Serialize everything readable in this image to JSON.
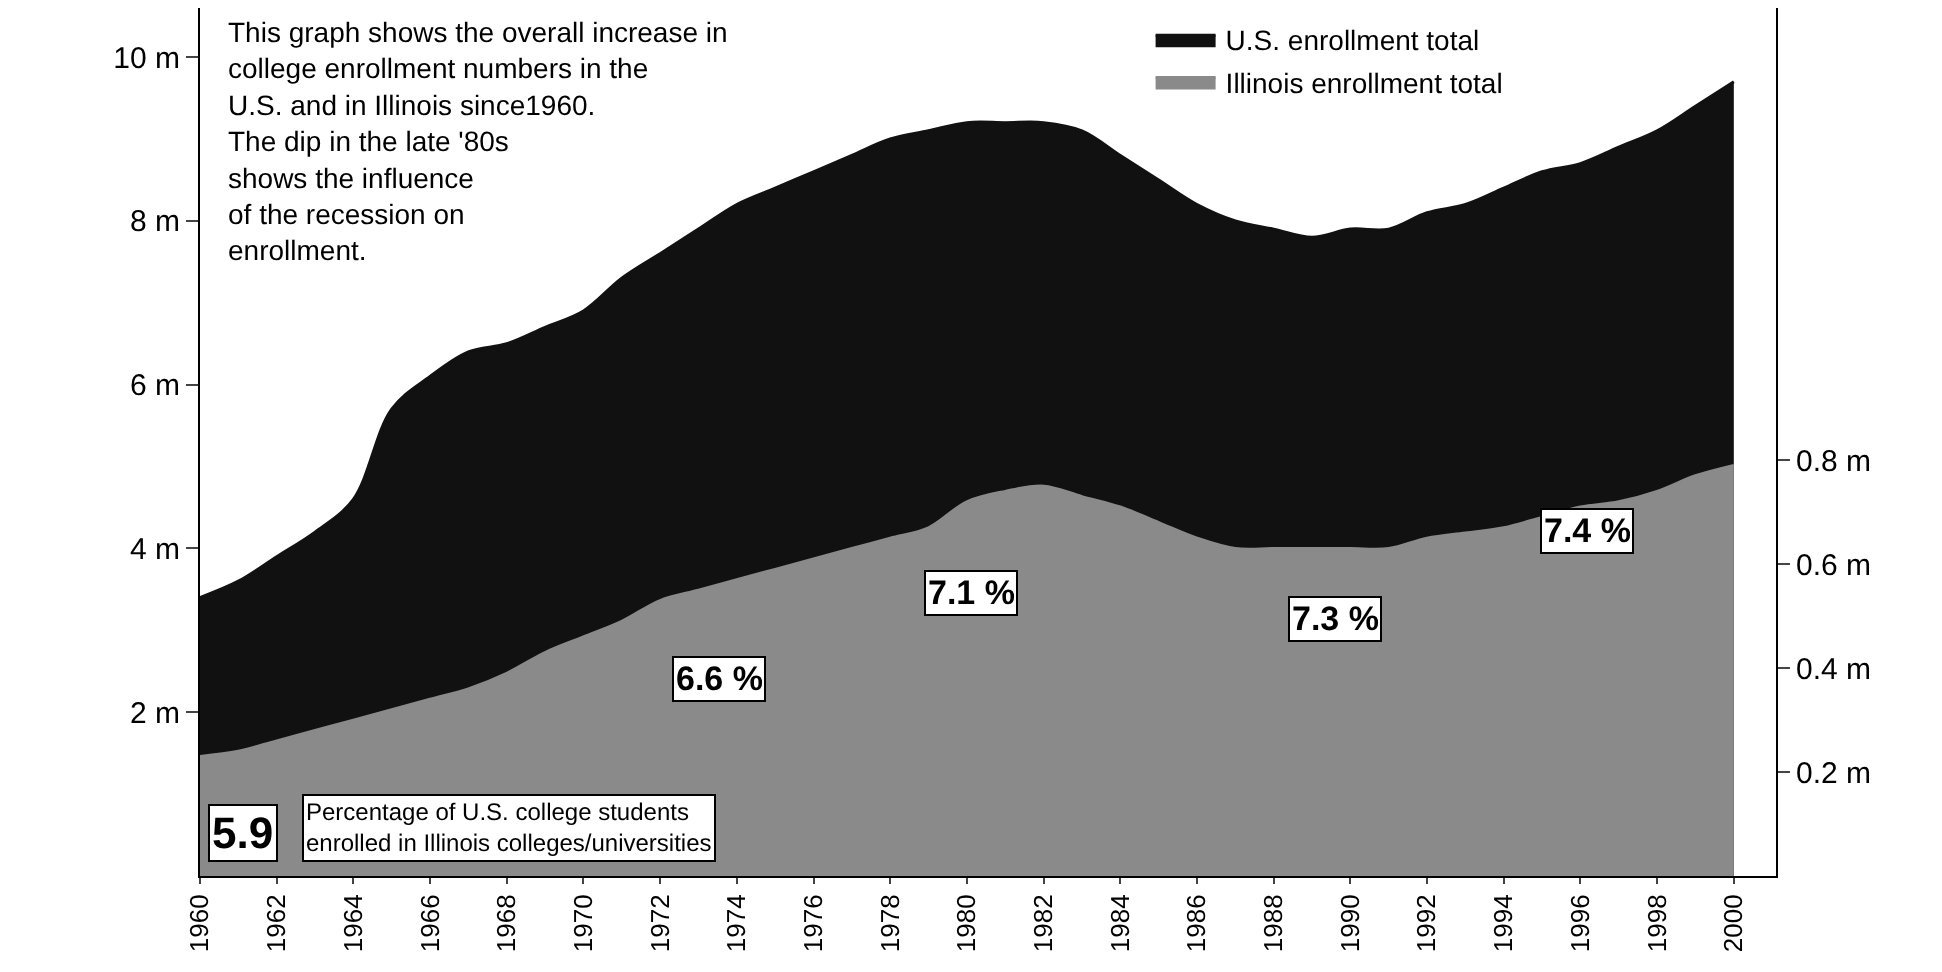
{
  "chart_data": {
    "type": "area",
    "x": [
      1960,
      1961,
      1962,
      1963,
      1964,
      1965,
      1966,
      1967,
      1968,
      1969,
      1970,
      1971,
      1972,
      1973,
      1974,
      1975,
      1976,
      1977,
      1978,
      1979,
      1980,
      1981,
      1982,
      1983,
      1984,
      1985,
      1986,
      1987,
      1988,
      1989,
      1990,
      1991,
      1992,
      1993,
      1994,
      1995,
      1996,
      1997,
      1998,
      1999,
      2000
    ],
    "series": [
      {
        "name": "U.S. enrollment total",
        "color": "#111111",
        "values": [
          3.4,
          3.6,
          3.9,
          4.2,
          4.6,
          5.7,
          6.1,
          6.4,
          6.5,
          6.7,
          6.9,
          7.3,
          7.6,
          7.9,
          8.2,
          8.4,
          8.6,
          8.8,
          9.0,
          9.1,
          9.2,
          9.2,
          9.2,
          9.1,
          8.8,
          8.5,
          8.2,
          8.0,
          7.9,
          7.8,
          7.9,
          7.9,
          8.1,
          8.2,
          8.4,
          8.6,
          8.7,
          8.9,
          9.1,
          9.4,
          9.7
        ]
      },
      {
        "name": "Illinois enrollment total",
        "color": "#8a8a8a",
        "axis": "y2",
        "values": [
          0.23,
          0.24,
          0.26,
          0.28,
          0.3,
          0.32,
          0.34,
          0.36,
          0.39,
          0.43,
          0.46,
          0.49,
          0.53,
          0.55,
          0.57,
          0.59,
          0.61,
          0.63,
          0.65,
          0.67,
          0.72,
          0.74,
          0.75,
          0.73,
          0.71,
          0.68,
          0.65,
          0.63,
          0.63,
          0.63,
          0.63,
          0.63,
          0.65,
          0.66,
          0.67,
          0.69,
          0.71,
          0.72,
          0.74,
          0.77,
          0.79
        ]
      }
    ],
    "xlim": [
      1960,
      2001.1
    ],
    "xticks": [
      1960,
      1962,
      1964,
      1966,
      1968,
      1970,
      1972,
      1974,
      1976,
      1978,
      1980,
      1982,
      1984,
      1986,
      1988,
      1990,
      1992,
      1994,
      1996,
      1998,
      2000
    ],
    "ylim": [
      0,
      10.6
    ],
    "yticks": [
      {
        "value": 2,
        "label": "2 m"
      },
      {
        "value": 4,
        "label": "4 m"
      },
      {
        "value": 6,
        "label": "6 m"
      },
      {
        "value": 8,
        "label": "8 m"
      },
      {
        "value": 10,
        "label": "10 m"
      }
    ],
    "y2lim": [
      0,
      1.67
    ],
    "y2ticks": [
      {
        "value": 0.2,
        "label": "0.2 m"
      },
      {
        "value": 0.4,
        "label": "0.4 m"
      },
      {
        "value": 0.6,
        "label": "0.6 m"
      },
      {
        "value": 0.8,
        "label": "0.8 m"
      }
    ],
    "legend": "top right",
    "grid": false,
    "annotations": [
      "This graph shows the overall increase in college enrollment numbers in the U.S. and in Illinois since1960. The dip in the late '80s shows the influence of the recession on enrollment.",
      "Percentage of U.S. college students enrolled in Illinois colleges/universities",
      "5.9",
      "6.6 %",
      "7.1 %",
      "7.3 %",
      "7.4 %"
    ]
  }
}
